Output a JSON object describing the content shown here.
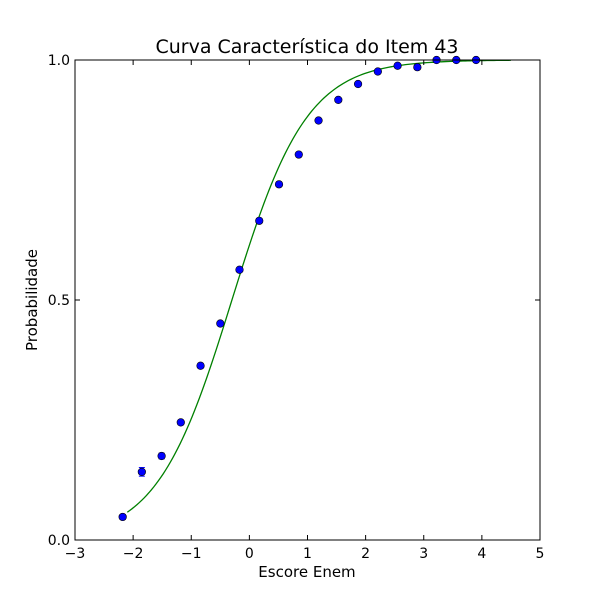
{
  "chart_data": {
    "type": "scatter",
    "title": "Curva Característica do Item 43",
    "xlabel": "Escore Enem",
    "ylabel": "Probabilidade",
    "xlim": [
      -3,
      5
    ],
    "ylim": [
      0,
      1
    ],
    "x_ticks": [
      -3,
      -2,
      -1,
      0,
      1,
      2,
      3,
      4,
      5
    ],
    "x_tick_labels": [
      "−3",
      "−2",
      "−1",
      "0",
      "1",
      "2",
      "3",
      "4",
      "5"
    ],
    "y_ticks": [
      0,
      0.5,
      1
    ],
    "y_tick_labels": [
      "0.0",
      "0.5",
      "1.0"
    ],
    "grid": false,
    "legend": "none",
    "points": {
      "color": "#0000ff",
      "errorbar_color": "#0000ff",
      "x": [
        -2.18,
        -1.85,
        -1.51,
        -1.18,
        -0.84,
        -0.5,
        -0.17,
        0.17,
        0.51,
        0.85,
        1.19,
        1.53,
        1.87,
        2.21,
        2.55,
        2.89,
        3.22,
        3.56,
        3.9
      ],
      "y": [
        0.048,
        0.142,
        0.175,
        0.245,
        0.363,
        0.451,
        0.563,
        0.665,
        0.741,
        0.803,
        0.874,
        0.917,
        0.95,
        0.976,
        0.988,
        0.985,
        1.0,
        1.0,
        1.0
      ],
      "err": [
        0.005,
        0.009,
        0.006,
        0.005,
        0.005,
        0.004,
        0.004,
        0.004,
        0.004,
        0.004,
        0.004,
        0.004,
        0.004,
        0.004,
        0.004,
        0.004,
        0.003,
        0.003,
        0.003
      ]
    },
    "curve": {
      "color": "#008000",
      "x_range": [
        -2.1,
        4.5
      ],
      "model": "logistic",
      "a": 1.55,
      "b": -0.3
    }
  }
}
